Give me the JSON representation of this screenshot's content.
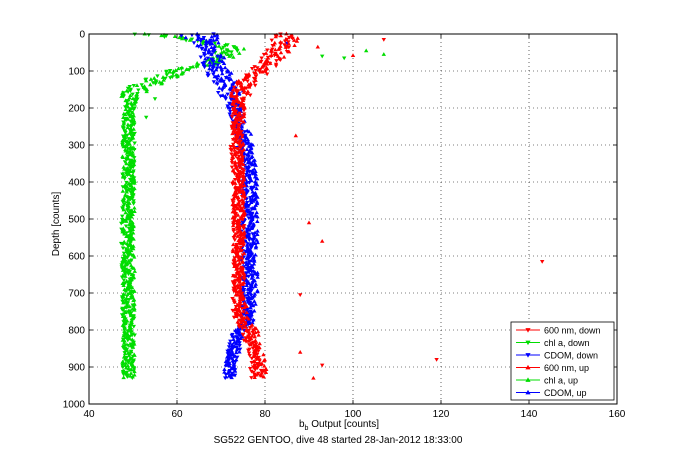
{
  "chart_data": {
    "type": "scatter",
    "xlabel_main": "b",
    "xlabel_sub": "b",
    "xlabel_rest": " Output [counts]",
    "ylabel": "Depth [counts]",
    "caption": "SG522 GENTOO, dive 48 started 28-Jan-2012 18:33:00",
    "xlim": [
      40,
      160
    ],
    "ylim": [
      0,
      1000
    ],
    "y_reversed": true,
    "grid": true,
    "legend_position": "bottom-right",
    "x_ticks": [
      40,
      60,
      80,
      100,
      120,
      140,
      160
    ],
    "y_ticks": [
      0,
      100,
      200,
      300,
      400,
      500,
      600,
      700,
      800,
      900,
      1000
    ],
    "series": [
      {
        "name": "600 nm, down",
        "color": "#ff0000",
        "marker": "triangle-down",
        "profile": [
          [
            0,
            84
          ],
          [
            20,
            84
          ],
          [
            40,
            83
          ],
          [
            60,
            82
          ],
          [
            80,
            81
          ],
          [
            100,
            79
          ],
          [
            130,
            76
          ],
          [
            170,
            74
          ],
          [
            200,
            74
          ],
          [
            300,
            73.5
          ],
          [
            400,
            74
          ],
          [
            500,
            74
          ],
          [
            600,
            74
          ],
          [
            700,
            74
          ],
          [
            780,
            74
          ],
          [
            800,
            76
          ],
          [
            850,
            77
          ],
          [
            900,
            78
          ],
          [
            930,
            78
          ]
        ],
        "outliers": [
          [
            107,
            15
          ],
          [
            143,
            615
          ],
          [
            119,
            880
          ],
          [
            88,
            705
          ],
          [
            93,
            895
          ]
        ]
      },
      {
        "name": "chl a, down",
        "color": "#00dd00",
        "marker": "triangle-down",
        "profile": [
          [
            0,
            53
          ],
          [
            10,
            60
          ],
          [
            20,
            64
          ],
          [
            30,
            70
          ],
          [
            40,
            72
          ],
          [
            60,
            70
          ],
          [
            80,
            66
          ],
          [
            100,
            60
          ],
          [
            120,
            56
          ],
          [
            140,
            52
          ],
          [
            160,
            50
          ],
          [
            200,
            49
          ],
          [
            400,
            49
          ],
          [
            600,
            48.5
          ],
          [
            800,
            49
          ],
          [
            930,
            49
          ]
        ],
        "outliers": [
          [
            93,
            60
          ],
          [
            98,
            65
          ],
          [
            53,
            225
          ],
          [
            55,
            175
          ]
        ]
      },
      {
        "name": "CDOM, down",
        "color": "#0000ff",
        "marker": "triangle-down",
        "profile": [
          [
            0,
            66
          ],
          [
            30,
            66
          ],
          [
            60,
            67
          ],
          [
            90,
            68
          ],
          [
            110,
            69
          ],
          [
            140,
            71
          ],
          [
            170,
            72
          ],
          [
            200,
            73
          ],
          [
            300,
            75
          ],
          [
            400,
            76
          ],
          [
            500,
            76
          ],
          [
            600,
            76
          ],
          [
            700,
            76
          ],
          [
            780,
            76
          ],
          [
            800,
            74
          ],
          [
            850,
            73
          ],
          [
            900,
            72
          ],
          [
            930,
            72
          ]
        ],
        "outliers": [
          [
            61,
            5
          ],
          [
            85,
            25
          ]
        ]
      },
      {
        "name": "600 nm, up",
        "color": "#ff0000",
        "marker": "triangle-up",
        "profile": [
          [
            0,
            85
          ],
          [
            20,
            85
          ],
          [
            40,
            84
          ],
          [
            60,
            82
          ],
          [
            80,
            80
          ],
          [
            100,
            78
          ],
          [
            130,
            76
          ],
          [
            170,
            74
          ],
          [
            200,
            74
          ],
          [
            300,
            74
          ],
          [
            400,
            74
          ],
          [
            500,
            74
          ],
          [
            600,
            74
          ],
          [
            700,
            74
          ],
          [
            780,
            75
          ],
          [
            800,
            77
          ],
          [
            850,
            78
          ],
          [
            900,
            79
          ],
          [
            930,
            79
          ]
        ],
        "outliers": [
          [
            92,
            35
          ],
          [
            100,
            58
          ],
          [
            87,
            275
          ],
          [
            90,
            510
          ],
          [
            93,
            560
          ],
          [
            88,
            860
          ],
          [
            91,
            930
          ]
        ]
      },
      {
        "name": "chl a, up",
        "color": "#00dd00",
        "marker": "triangle-up",
        "profile": [
          [
            0,
            55
          ],
          [
            10,
            62
          ],
          [
            20,
            66
          ],
          [
            30,
            71
          ],
          [
            40,
            73
          ],
          [
            60,
            71
          ],
          [
            80,
            67
          ],
          [
            100,
            61
          ],
          [
            120,
            57
          ],
          [
            140,
            53
          ],
          [
            160,
            50
          ],
          [
            200,
            49
          ],
          [
            400,
            49
          ],
          [
            600,
            49
          ],
          [
            800,
            49
          ],
          [
            930,
            49
          ]
        ],
        "outliers": [
          [
            107,
            55
          ],
          [
            103,
            45
          ]
        ]
      },
      {
        "name": "CDOM, up",
        "color": "#0000ff",
        "marker": "triangle-up",
        "profile": [
          [
            0,
            67
          ],
          [
            30,
            67
          ],
          [
            60,
            68
          ],
          [
            90,
            69
          ],
          [
            110,
            70
          ],
          [
            140,
            72
          ],
          [
            170,
            73
          ],
          [
            200,
            74
          ],
          [
            300,
            76
          ],
          [
            400,
            77
          ],
          [
            500,
            77
          ],
          [
            600,
            77
          ],
          [
            700,
            77
          ],
          [
            780,
            76
          ],
          [
            800,
            74
          ],
          [
            850,
            73
          ],
          [
            900,
            72
          ],
          [
            930,
            72
          ]
        ],
        "outliers": [
          [
            62,
            10
          ],
          [
            69,
            15
          ]
        ]
      }
    ]
  }
}
